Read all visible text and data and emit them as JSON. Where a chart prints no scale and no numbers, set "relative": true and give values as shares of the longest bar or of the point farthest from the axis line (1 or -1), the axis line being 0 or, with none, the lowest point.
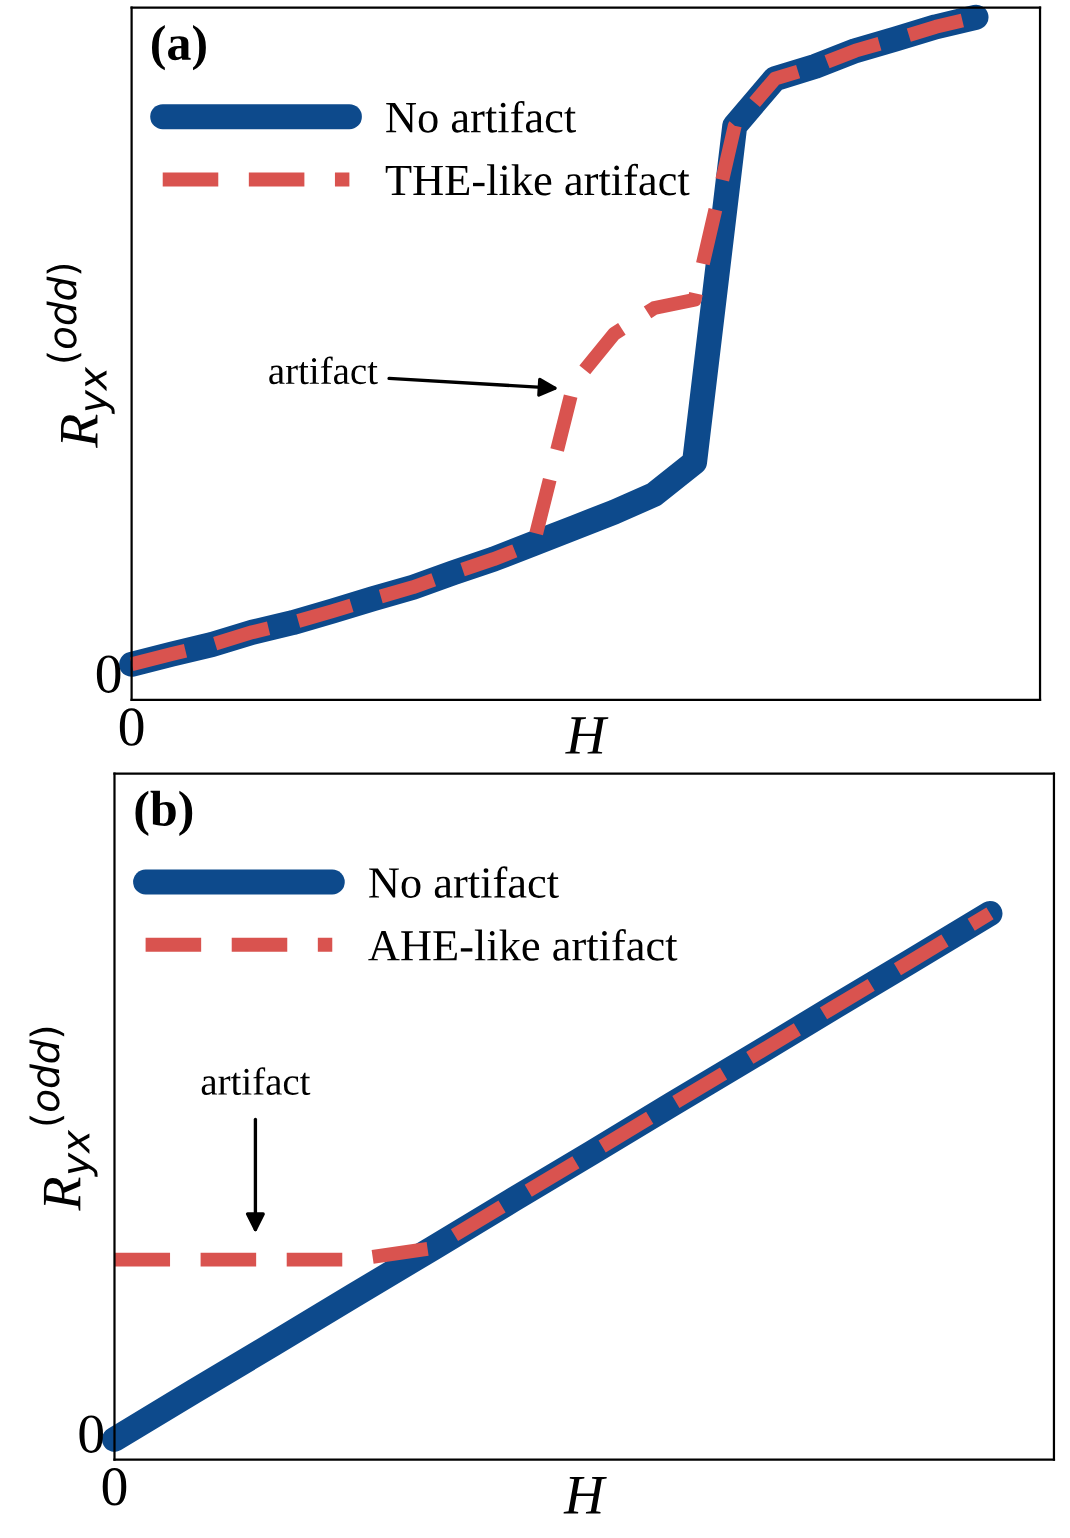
{
  "chart_data": [
    {
      "type": "line",
      "title": "(a)",
      "xlabel": "H",
      "ylabel": "R$_{yx}$$^{(odd)}$",
      "relative": true,
      "legend": "top left",
      "categories": [
        null,
        null,
        null,
        null,
        null,
        null,
        null,
        null,
        null,
        null,
        null,
        null,
        null,
        null,
        null,
        null,
        null,
        null,
        null,
        null,
        null,
        null
      ],
      "series": [
        {
          "name": "No artifact",
          "color": "#0d4a8c",
          "line_style": "solid",
          "values": [
            0.052,
            0.067,
            0.081,
            0.099,
            0.113,
            0.13,
            0.148,
            0.165,
            0.186,
            0.206,
            0.229,
            0.252,
            0.275,
            0.301,
            0.348,
            0.841,
            0.91,
            0.928,
            0.951,
            0.968,
            0.986,
            1
          ]
        },
        {
          "name": "THE-like artifact",
          "color": "#d9534f",
          "line_style": "dashed",
          "values": [
            0.052,
            0.067,
            0.081,
            0.099,
            0.113,
            0.13,
            0.148,
            0.165,
            0.186,
            0.206,
            0.229,
            0.464,
            0.536,
            0.574,
            0.586,
            0.841,
            0.91,
            0.928,
            0.951,
            0.968,
            0.986,
            1
          ]
        }
      ],
      "annotations": [
        "artifact",
        "0",
        "0"
      ]
    },
    {
      "type": "line",
      "title": "(b)",
      "xlabel": "H",
      "ylabel": "R$_{yx}$$^{(odd)}$",
      "relative": true,
      "legend": "top left",
      "categories": [
        null,
        null,
        null,
        null,
        null,
        null,
        null,
        null,
        null,
        null,
        null,
        null
      ],
      "series": [
        {
          "name": "No artifact",
          "color": "#0d4a8c",
          "line_style": "solid",
          "values": [
            0.037,
            0.125,
            0.212,
            0.3,
            0.387,
            0.475,
            0.562,
            0.65,
            0.737,
            0.825,
            0.912,
            1
          ]
        },
        {
          "name": "AHE-like artifact",
          "color": "#d9534f",
          "line_style": "dashed",
          "values": [
            0.366,
            0.366,
            0.366,
            0.366,
            0.387,
            0.475,
            0.562,
            0.65,
            0.737,
            0.825,
            0.912,
            1
          ]
        }
      ],
      "annotations": [
        "artifact",
        "0",
        "0"
      ]
    }
  ]
}
